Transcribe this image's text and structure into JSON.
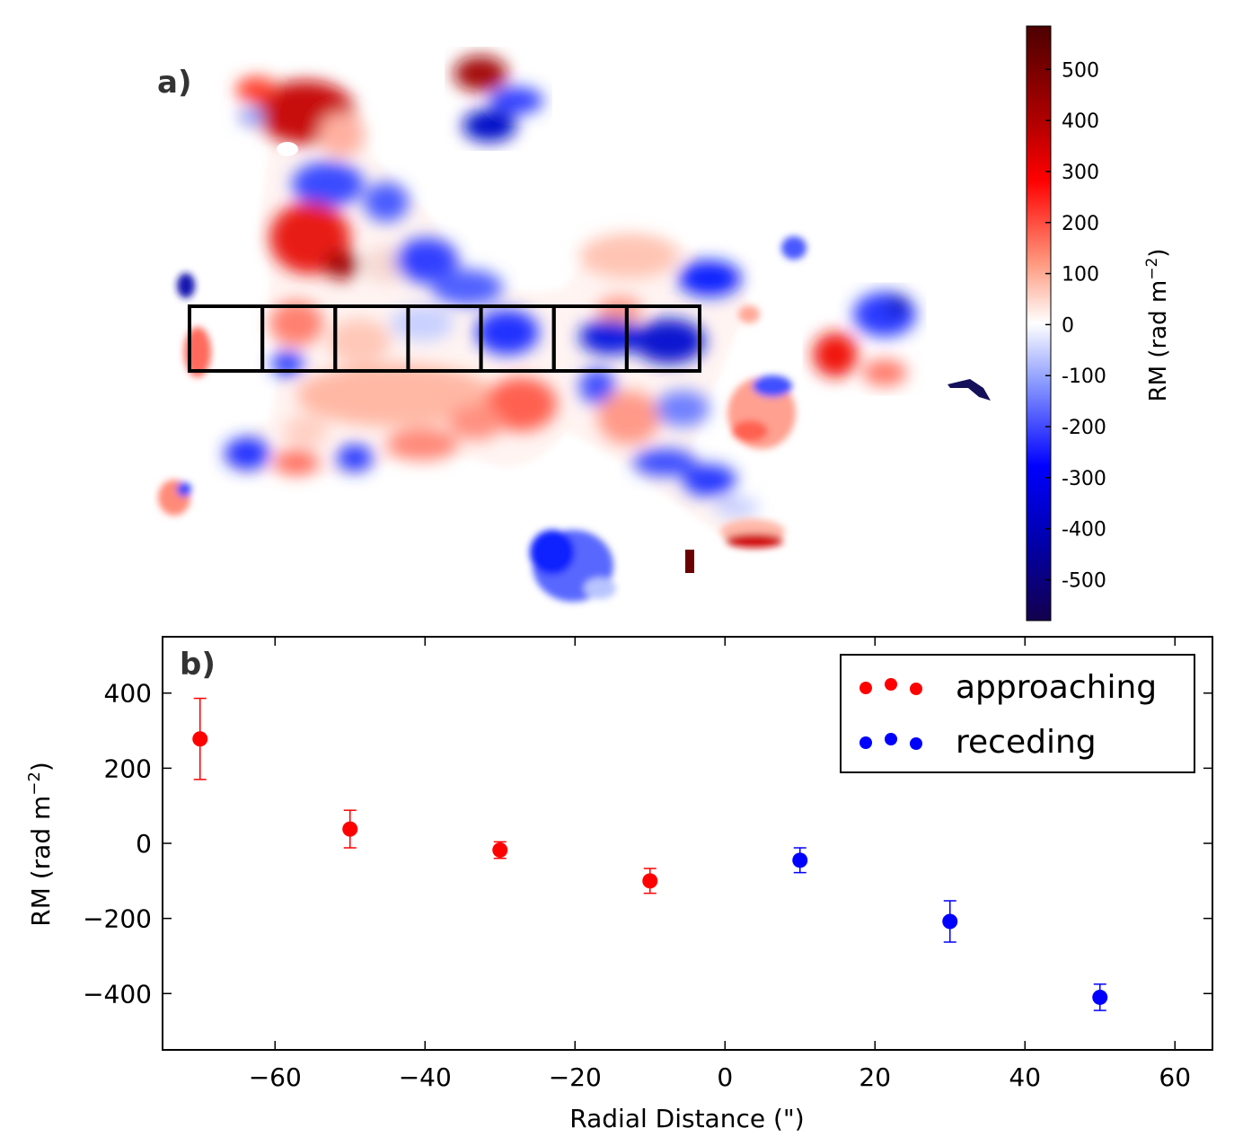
{
  "chart_data": [
    {
      "type": "heatmap",
      "panel_label": "a)",
      "colorbar": {
        "label": "RM (rad m⁻²)",
        "ticks": [
          500,
          400,
          300,
          200,
          100,
          0,
          -100,
          -200,
          -300,
          -400,
          -500
        ],
        "tick_labels": [
          "500",
          "400",
          "300",
          "200",
          "100",
          "0",
          "-100",
          "-200",
          "-300",
          "-400",
          "-500"
        ],
        "range": [
          -580,
          585
        ],
        "cmap": "seismic",
        "colors": {
          "low": "#13004d",
          "mid_low": "#0000ff",
          "center": "#ffffff",
          "mid_high": "#ff0000",
          "high": "#4c0000"
        }
      },
      "extraction_boxes": 7
    },
    {
      "type": "scatter",
      "panel_label": "b)",
      "xlabel": "Radial Distance (\")",
      "ylabel": "RM (rad m⁻²)",
      "xlim": [
        -75,
        65
      ],
      "ylim": [
        -550,
        550
      ],
      "xticks": [
        -60,
        -40,
        -20,
        0,
        20,
        40,
        60
      ],
      "xtick_labels": [
        "−60",
        "−40",
        "−20",
        "0",
        "20",
        "40",
        "60"
      ],
      "yticks": [
        400,
        200,
        0,
        -200,
        -400
      ],
      "ytick_labels": [
        "400",
        "200",
        "0",
        "−200",
        "−400"
      ],
      "legend_position": "top-right",
      "series": [
        {
          "name": "approaching",
          "color": "#ff0000",
          "x": [
            -70,
            -50,
            -30,
            -10
          ],
          "y": [
            278,
            38,
            -18,
            -100
          ],
          "yerr": [
            108,
            50,
            22,
            33
          ]
        },
        {
          "name": "receding",
          "color": "#0000ff",
          "x": [
            10,
            30,
            50
          ],
          "y": [
            -45,
            -208,
            -410
          ],
          "yerr": [
            33,
            55,
            35
          ]
        }
      ]
    }
  ]
}
